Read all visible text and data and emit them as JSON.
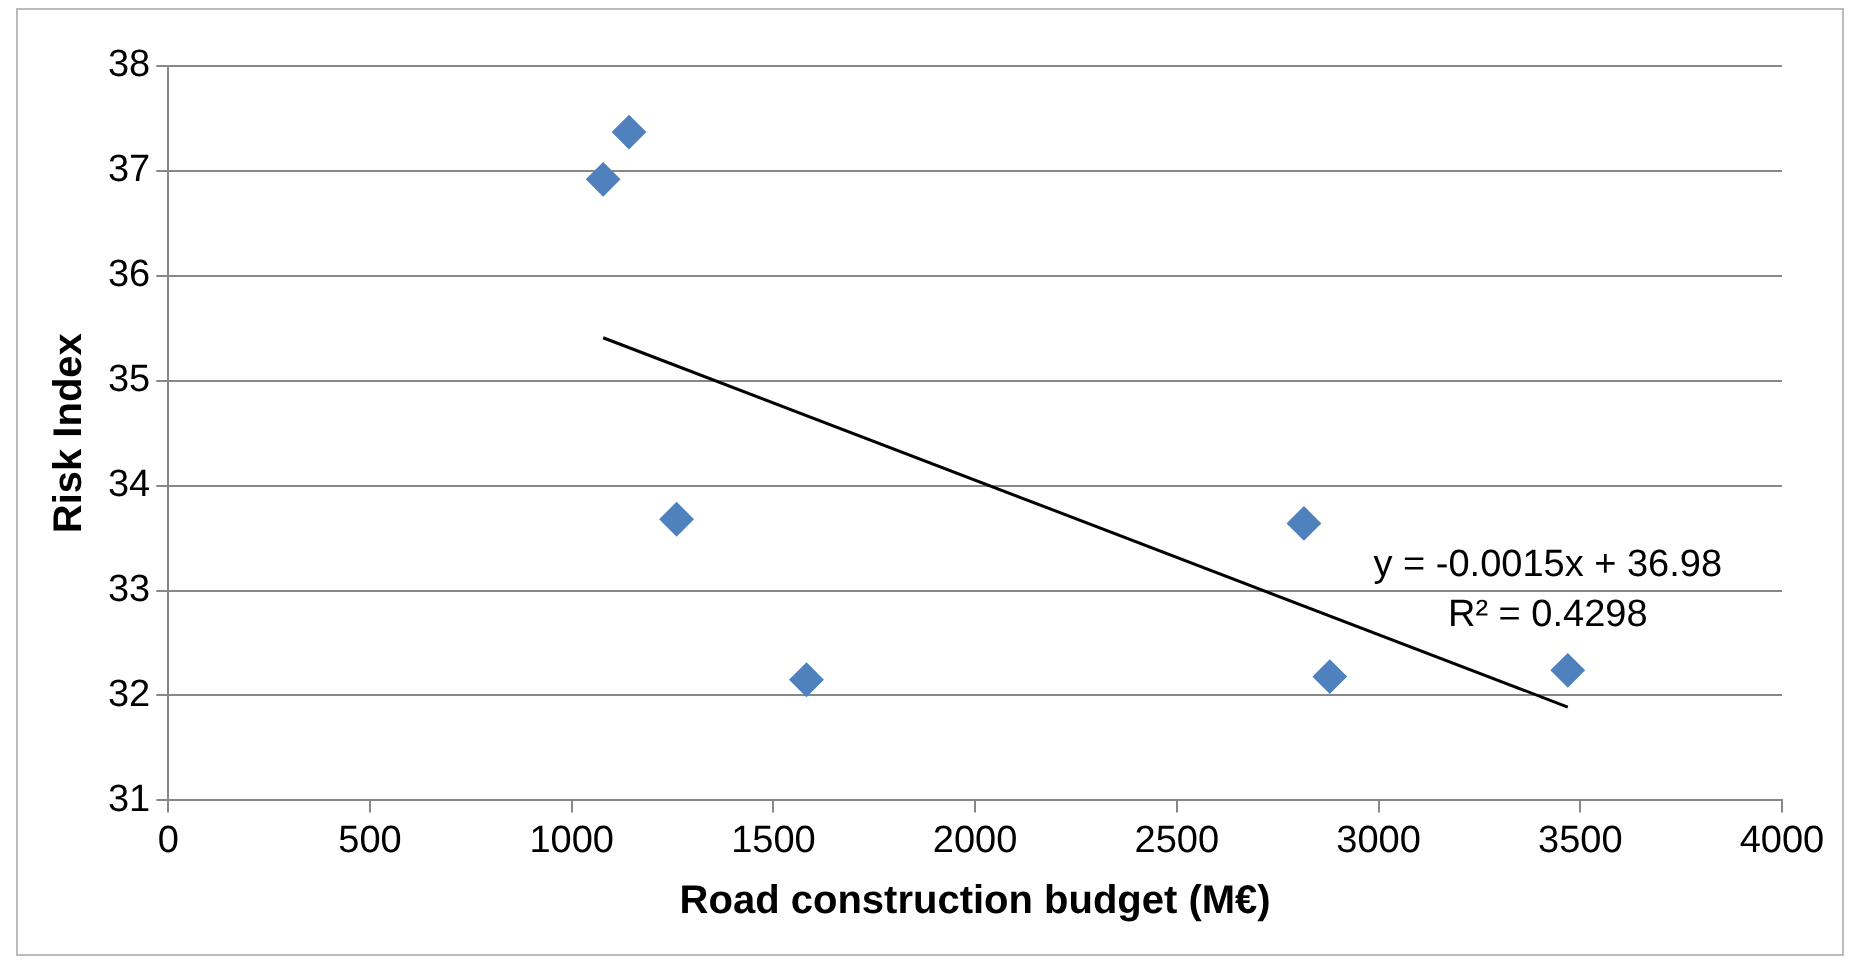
{
  "chart_data": {
    "type": "scatter",
    "xlabel": "Road construction budget (M€)",
    "ylabel": "Risk Index",
    "series": [
      {
        "color": "#4f81bd",
        "x": [
          1078,
          1142,
          1260,
          1582,
          2815,
          2879,
          3469
        ],
        "values": [
          36.92,
          37.37,
          33.68,
          32.15,
          33.64,
          32.18,
          32.24
        ],
        "marker": "diamond"
      },
      {
        "type": "line",
        "color": "#000000",
        "x": [
          1078,
          3469
        ],
        "values": [
          35.41,
          31.89
        ],
        "marker": "none"
      }
    ],
    "xlim": [
      0,
      4000
    ],
    "xticks": [
      0,
      500,
      1000,
      1500,
      2000,
      2500,
      3000,
      3500,
      4000
    ],
    "ylim": [
      31,
      38
    ],
    "yticks": [
      31,
      32,
      33,
      34,
      35,
      36,
      37,
      38
    ],
    "grid": "y",
    "legend": false,
    "annotations": [
      "y = -0.0015x + 36.98",
      "R² = 0.4298"
    ]
  }
}
